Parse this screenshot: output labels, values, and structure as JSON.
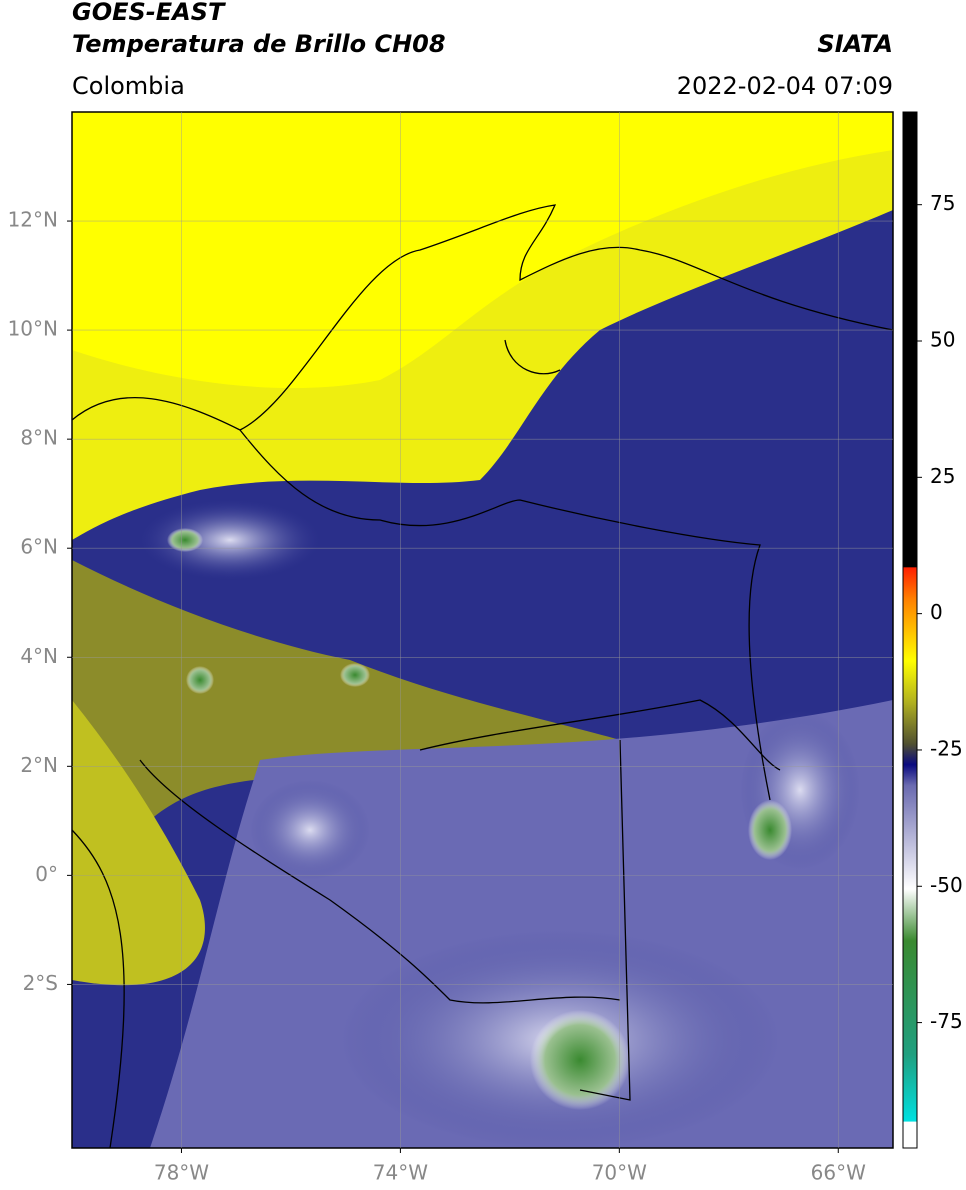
{
  "header": {
    "title": "GOES-EAST",
    "subtitle": "Temperatura de Brillo CH08",
    "source": "SIATA",
    "region": "Colombia",
    "datetime": "2022-02-04 07:09"
  },
  "map": {
    "xlim": [
      -80,
      -65
    ],
    "ylim": [
      -5,
      14
    ],
    "xticks": [
      {
        "value": -78,
        "label": "78°W"
      },
      {
        "value": -74,
        "label": "74°W"
      },
      {
        "value": -70,
        "label": "70°W"
      },
      {
        "value": -66,
        "label": "66°W"
      }
    ],
    "yticks": [
      {
        "value": 12,
        "label": "12°N"
      },
      {
        "value": 10,
        "label": "10°N"
      },
      {
        "value": 8,
        "label": "8°N"
      },
      {
        "value": 6,
        "label": "6°N"
      },
      {
        "value": 4,
        "label": "4°N"
      },
      {
        "value": 2,
        "label": "2°N"
      },
      {
        "value": 0,
        "label": "0°"
      },
      {
        "value": -2,
        "label": "2°S"
      }
    ],
    "grid": true
  },
  "colorbar": {
    "lim": [
      -98,
      92
    ],
    "ticks": [
      75,
      50,
      25,
      0,
      -25,
      -50,
      -75
    ]
  }
}
